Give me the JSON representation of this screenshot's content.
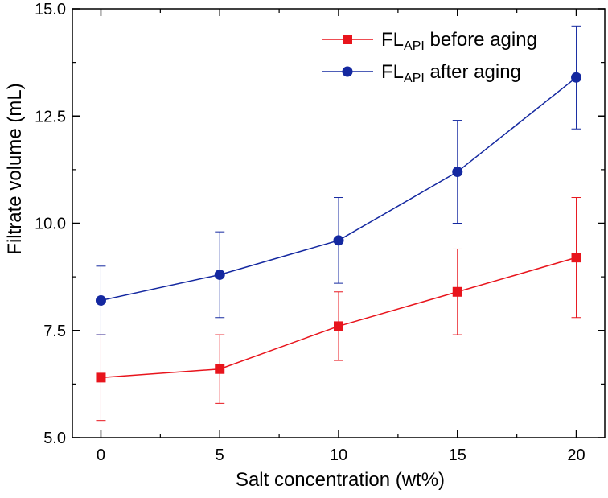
{
  "chart_data": {
    "type": "line",
    "title": "",
    "xlabel": "Salt concentration (wt%)",
    "ylabel": "Filtrate volume (mL)",
    "x": [
      0,
      5,
      10,
      15,
      20
    ],
    "xlim": [
      -1.2,
      21.2
    ],
    "ylim": [
      5.0,
      15.0
    ],
    "xticks": [
      "0",
      "5",
      "10",
      "15",
      "20"
    ],
    "xtick_values": [
      0,
      5,
      10,
      15,
      20
    ],
    "yticks": [
      "5.0",
      "7.5",
      "10.0",
      "12.5",
      "15.0"
    ],
    "ytick_values": [
      5.0,
      7.5,
      10.0,
      12.5,
      15.0
    ],
    "grid": false,
    "legend_position": "top-right",
    "series": [
      {
        "name": "FLAPI before aging",
        "legend_main": "FL",
        "legend_sub": "API",
        "legend_rest": " before aging",
        "color": "#e8141c",
        "marker": "square",
        "values": [
          6.4,
          6.6,
          7.6,
          8.4,
          9.2
        ],
        "errors": [
          1.0,
          0.8,
          0.8,
          1.0,
          1.4
        ]
      },
      {
        "name": "FLAPI after aging",
        "legend_main": "FL",
        "legend_sub": "API",
        "legend_rest": " after aging",
        "color": "#1428a0",
        "marker": "circle",
        "values": [
          8.2,
          8.8,
          9.6,
          11.2,
          13.4
        ],
        "errors": [
          0.8,
          1.0,
          1.0,
          1.2,
          1.2
        ]
      }
    ]
  }
}
